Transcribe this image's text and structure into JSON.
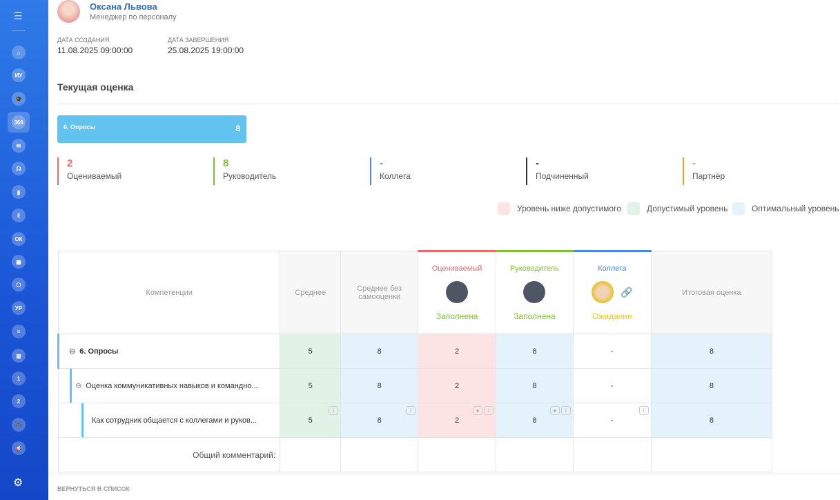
{
  "user": {
    "name": "Оксана Львова",
    "role": "Менеджер по персоналу"
  },
  "dates": {
    "created_label": "ДАТА СОЗДАНИЯ",
    "created": "11.08.2025 09:00:00",
    "finished_label": "ДАТА ЗАВЕРШЕНИЯ",
    "finished": "25.08.2025 19:00:00"
  },
  "section_title": "Текущая оценка",
  "summary_bar": {
    "label": "6. Опросы",
    "value": "8",
    "color": "#62c3f0"
  },
  "stats": [
    {
      "value": "2",
      "label": "Оцениваемый",
      "color": "#f06a6a"
    },
    {
      "value": "8",
      "label": "Руководитель",
      "color": "#7dc12f"
    },
    {
      "value": "-",
      "label": "Коллега",
      "color": "#4a86e8"
    },
    {
      "value": "-",
      "label": "Подчиненный",
      "color": "#333333"
    },
    {
      "value": "-",
      "label": "Партнёр",
      "color": "#f0a030"
    }
  ],
  "legend": [
    {
      "label": "Уровень ниже допустимого",
      "color": "#fde4e4"
    },
    {
      "label": "Допустимый уровень",
      "color": "#e0f3e6"
    },
    {
      "label": "Оптимальный уровень",
      "color": "#e4f3fb"
    }
  ],
  "table": {
    "headers": {
      "competencies": "Компетенции",
      "avg": "Среднее",
      "avg_no_self": "Среднее без самооценки",
      "final": "Итоговая оценка"
    },
    "raters": [
      {
        "role": "Оцениваемый",
        "status": "Заполнена",
        "color": "#f06a6a",
        "status_color": "#7dc12f"
      },
      {
        "role": "Руководитель",
        "status": "Заполнена",
        "color": "#7dc12f",
        "status_color": "#7dc12f"
      },
      {
        "role": "Коллега",
        "status": "Ожидание",
        "color": "#4a86e8",
        "status_color": "#f5c518"
      }
    ],
    "rows": [
      {
        "name": "6. Опросы",
        "avg": "5",
        "avg_no_self": "8",
        "r1": "2",
        "r2": "8",
        "r3": "-",
        "final": "8"
      },
      {
        "name": "Оценка коммуникативных навыков и командно...",
        "avg": "5",
        "avg_no_self": "8",
        "r1": "2",
        "r2": "8",
        "r3": "-",
        "final": "8"
      },
      {
        "name": "Как сотрудник общается с коллегами и руков...",
        "avg": "5",
        "avg_no_self": "8",
        "r1": "2",
        "r2": "8",
        "r3": "-",
        "final": "8"
      }
    ],
    "comment_label": "Общий комментарий:"
  },
  "sidebar": {
    "items": [
      "menu",
      "home",
      "ИУ",
      "education",
      "360",
      "chat",
      "support",
      "book",
      "library",
      "ОК",
      "calendar",
      "hexagon",
      "УР",
      "list",
      "chart",
      "badge-1",
      "badge-2",
      "games",
      "announcements",
      "settings"
    ]
  },
  "footer": {
    "back": "ВЕРНУТЬСЯ В СПИСОК"
  }
}
